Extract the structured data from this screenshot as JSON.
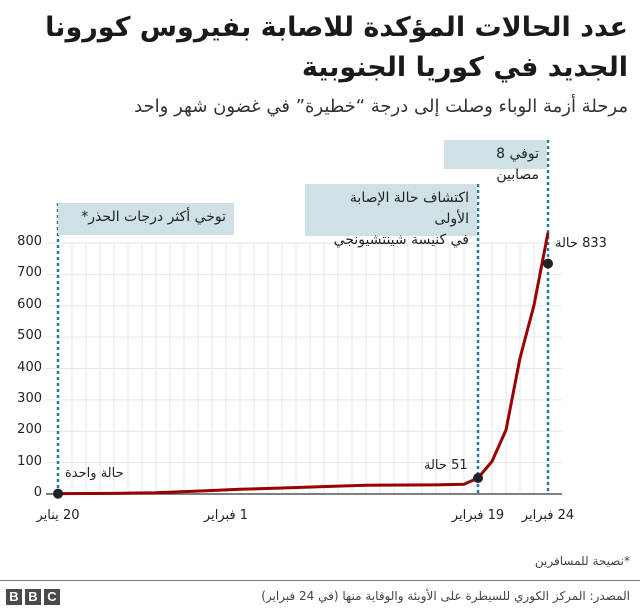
{
  "header": {
    "title": "عدد الحالات المؤكدة للاصابة بفيروس كورونا الجديد في كوريا الجنوبية",
    "subtitle": "مرحلة أزمة الوباء وصلت إلى درجة “خطيرة” في غضون شهر واحد"
  },
  "annotations": {
    "travel_advice": "توخي أكثر درجات الحذر*",
    "first_case_church_line1": "اكتشاف حالة الإصابة الأولى",
    "first_case_church_line2": "في كنيسة شينتشيونجي",
    "deaths": "توفي 8 مصابين"
  },
  "point_labels": {
    "first": "حالة واحدة",
    "feb19": "51 حالة",
    "feb24": "833 حالة"
  },
  "colors": {
    "line": "#990000",
    "annotation_bg": "#cfe1e5",
    "marker_line": "#1f7a9c",
    "grid": "#e6e6e6",
    "axis": "#555555"
  },
  "footer": {
    "footnote": "*نصيحة للمسافرين",
    "source": "المصدر: المركز الكوري للسيطرة على الأوبئة والوقاية منها (في 24 فبراير)",
    "logo": [
      "B",
      "B",
      "C"
    ]
  },
  "chart_data": {
    "type": "line",
    "title": "عدد الحالات المؤكدة للاصابة بفيروس كورونا الجديد في كوريا الجنوبية",
    "subtitle": "مرحلة أزمة الوباء وصلت إلى درجة “خطيرة” في غضون شهر واحد",
    "xlabel": "",
    "ylabel": "",
    "ylim": [
      0,
      800
    ],
    "yticks": [
      0,
      100,
      200,
      300,
      400,
      500,
      600,
      700,
      800
    ],
    "xtick_labels": [
      "20 يناير",
      "1 فبراير",
      "19 فبراير",
      "24 فبراير"
    ],
    "grid": true,
    "x": [
      "Jan 20",
      "Jan 24",
      "Jan 27",
      "Jan 31",
      "Feb 2",
      "Feb 5",
      "Feb 9",
      "Feb 11",
      "Feb 16",
      "Feb 18",
      "Feb 19",
      "Feb 20",
      "Feb 21",
      "Feb 22",
      "Feb 23",
      "Feb 24"
    ],
    "series": [
      {
        "name": "Confirmed cases",
        "values": [
          1,
          2,
          4,
          11,
          15,
          19,
          25,
          28,
          29,
          31,
          51,
          104,
          204,
          433,
          602,
          833
        ]
      }
    ],
    "highlighted_points": [
      {
        "x": "Jan 20",
        "y": 1,
        "label": "حالة واحدة"
      },
      {
        "x": "Feb 19",
        "y": 51,
        "label": "51 حالة"
      },
      {
        "x": "Feb 24",
        "y": 833,
        "label": "833 حالة"
      }
    ],
    "event_markers": [
      {
        "x": "Jan 20",
        "label": "توخي أكثر درجات الحذر*"
      },
      {
        "x": "Feb 19",
        "label": "اكتشاف حالة الإصابة الأولى في كنيسة شينتشيونجي"
      },
      {
        "x": "Feb 24",
        "label": "توفي 8 مصابين"
      }
    ]
  }
}
